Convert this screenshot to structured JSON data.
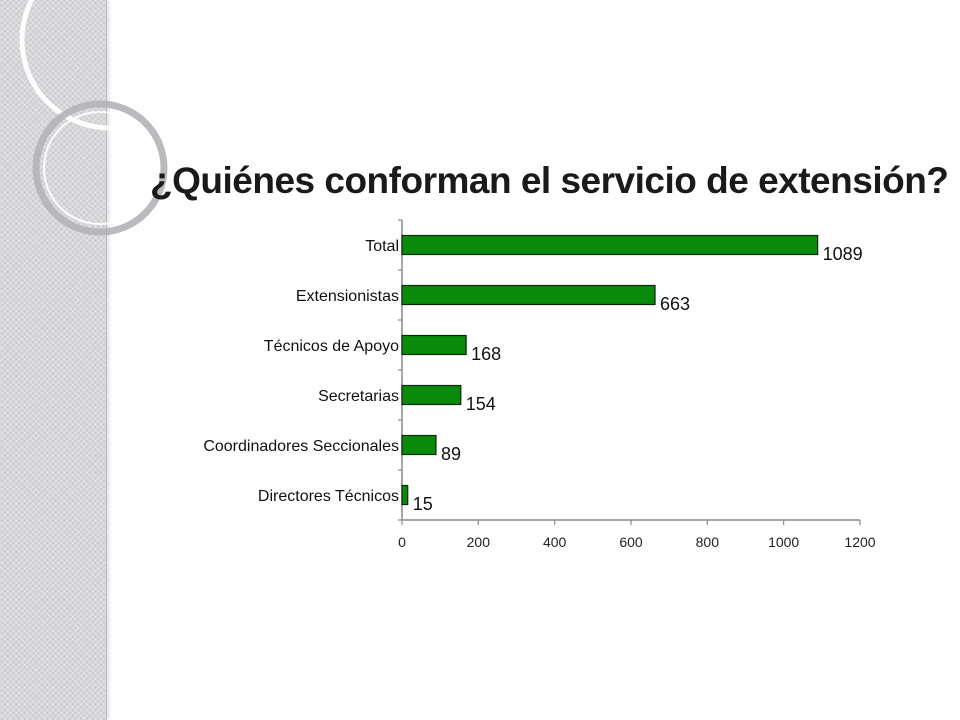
{
  "colors": {
    "bar": "#0a8a0a",
    "bar_stroke": "#0b2a0b",
    "axis": "#8a8a8a"
  },
  "decor": {
    "side_strip": "textured-sidebar",
    "rings": "concentric-arc-ornament"
  },
  "chart_data": {
    "type": "bar",
    "orientation": "horizontal",
    "title": "¿Quiénes conforman el servicio de extensión?",
    "categories": [
      "Total",
      "Extensionistas",
      "Técnicos de Apoyo",
      "Secretarias",
      "Coordinadores Seccionales",
      "Directores Técnicos"
    ],
    "values": [
      1089,
      663,
      168,
      154,
      89,
      15
    ],
    "value_labels": [
      "1089",
      "663",
      "168",
      "154",
      "89",
      "15"
    ],
    "xlim": [
      0,
      1200
    ],
    "x_ticks": [
      0,
      200,
      400,
      600,
      800,
      1000,
      1200
    ],
    "x_tick_labels": [
      "0",
      "200",
      "400",
      "600",
      "800",
      "1000",
      "1200"
    ],
    "xlabel": "",
    "ylabel": "",
    "grid": false,
    "legend": "none"
  }
}
